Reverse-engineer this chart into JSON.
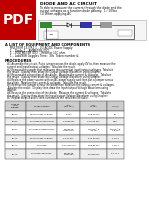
{
  "title": "DIODE AND AC CIRCUIT",
  "pdf_label": "PDF",
  "intro_lines": [
    "To able to measure the current through the diode and the",
    "output voltages as a function diode polarity.  1 / 10Sec",
    "(1) When applying AC"
  ],
  "section1_title": "A LIST OF EQUIPMENT AND COMPONENTS",
  "equipment": [
    "MULTISIM 13.0 R2 1 – I/O AC/DC Power Supply",
    "1 – Diode 1 – AMMETER (DC)",
    "1 – VOLTMETER (DC) – Resistor 10C ohm",
    "1 – LabVIEW Goggles Time:  30s  Token number &"
  ],
  "proc_title": "PROCEDURES",
  "proc_lines": [
    "#1 Assemble the circuit. Put a jumper across the diode, apply 0V to, then measure the",
    "current and input/output voltages.  Tabulate the result",
    "#2 Remove the jumper that measures the current at input/output voltages. Tabulate",
    "the result.  Display then draw the Output Voltage Waveform using Grapher.",
    "#3 Reverse the connection of the diode.  Measure the current & voltages.  Tabulate",
    "the result.  Display then draw the Output Voltage Waveform using Grapher.",
    "#4 Replace the power source with an AC power supply and then put a jumper across",
    "the diode.  Measure the current & voltages.  Tabulate the result.",
    "#5 Remove the jumper across the diode then measure the output current & voltages.",
    "Tabulate the result.  Display then draw the Input/output Voltage Waveform using",
    "Grapher.",
    "#6 Reverse the connection of the diode.  Measure the current & voltages.  Tabulate",
    "the result.  Display then draw the Input/output Voltage Waveform using Grapher.",
    "#7 Repeat steps 4 and 5 then summarize the result on the table."
  ],
  "table_col_labels": [
    "Type of\nInput\nVoltage",
    "Diode Position",
    "I-mA\n(DC mA)",
    "I-mA\nAC-mA",
    "Vin /V"
  ],
  "table_rows": [
    [
      "0V-DC",
      "Wire Jumper ACROSS",
      "0 mA",
      "100.06 mA",
      "0V"
    ],
    [
      "0V-DC",
      "9V diode Forward Bias",
      "0.4948 mA",
      "14.6-20 mA",
      "0.8V"
    ],
    [
      "0V-DC",
      "9V diode Reversed Bias",
      "0.000000\n00006 mA",
      "18 x10^-9,\n.03 mA",
      "0.1x10^-9,\n0.3 mA"
    ],
    [
      "0V-AC",
      "Wire Jumper ACROSS",
      "0.047 mA",
      "212.39 mA",
      "1.35 V"
    ],
    [
      "0V-AC",
      "9V diode",
      "0.1V/100 mA",
      "389.81 mA",
      "1.15 V"
    ],
    [
      "0V-AC",
      "9V diode, Reversed",
      "0.000000\n0000 mA",
      "60.999 mA",
      "0.777 V"
    ]
  ],
  "bg_color": "#ffffff",
  "text_color": "#000000",
  "pdf_bg": "#c00000",
  "pdf_text": "#ffffff",
  "table_header_bg": "#cccccc",
  "table_alt_bg": "#eeeeee",
  "circuit_bg": "#f5f5f5",
  "green_color": "#338833",
  "blue_color": "#3333aa",
  "gray_color": "#999999"
}
